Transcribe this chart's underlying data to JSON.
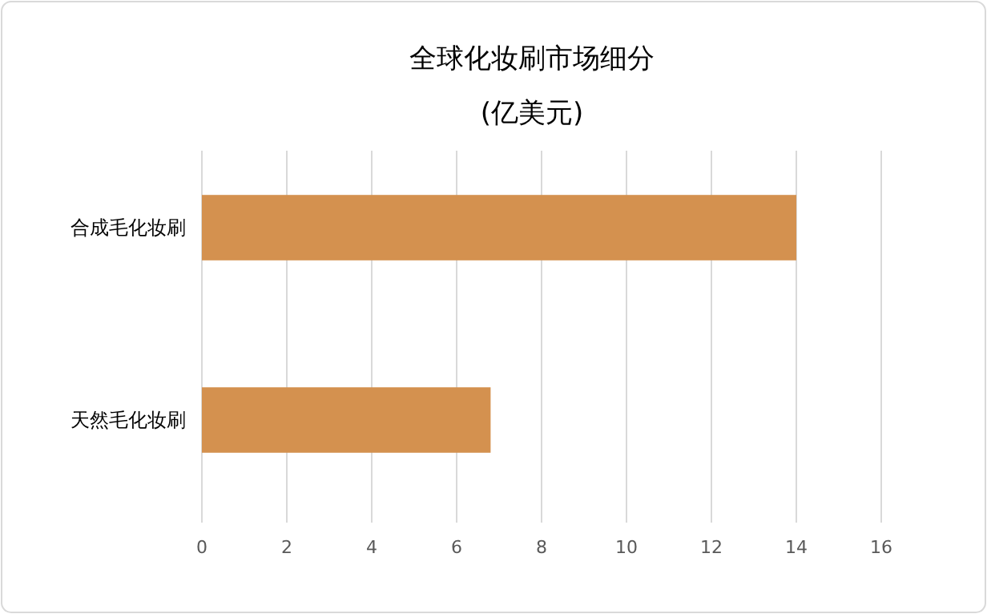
{
  "chart_data": {
    "type": "bar",
    "orientation": "horizontal",
    "title": "全球化妆刷市场细分",
    "subtitle": "(亿美元)",
    "categories": [
      "合成毛化妆刷",
      "天然毛化妆刷"
    ],
    "values": [
      14,
      6.8
    ],
    "color": "#d4914f",
    "xlim": [
      0,
      16
    ],
    "xticks": [
      0,
      2,
      4,
      6,
      8,
      10,
      12,
      14,
      16
    ],
    "grid": "x"
  }
}
